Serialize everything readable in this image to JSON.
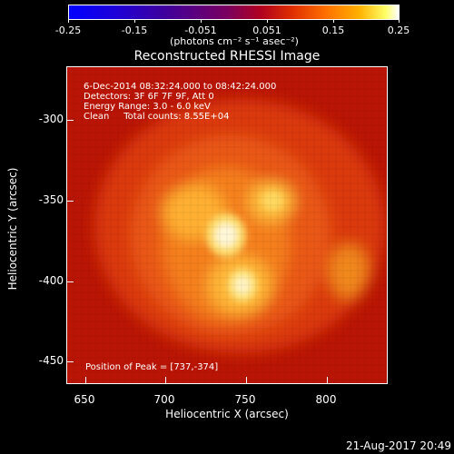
{
  "colorbar": {
    "ticks": [
      "-0.25",
      "-0.15",
      "-0.051",
      "0.051",
      "0.15",
      "0.25"
    ],
    "units": "(photons cm⁻² s⁻¹ asec⁻²)"
  },
  "plot": {
    "title": "Reconstructed RHESSI Image",
    "xlabel": "Heliocentric X (arcsec)",
    "ylabel": "Heliocentric Y (arcsec)",
    "xticks": [
      "650",
      "700",
      "750",
      "800"
    ],
    "yticks": [
      "-300",
      "-350",
      "-400",
      "-450"
    ]
  },
  "info": {
    "time_range": "6-Dec-2014 08:32:24.000 to 08:42:24.000",
    "detectors": "Detectors: 3F 6F 7F 9F, Att 0",
    "energy": "Energy Range: 3.0 - 6.0 keV",
    "clean": "Clean     Total counts: 8.55E+04",
    "peak": "Position of Peak = [737,-374]"
  },
  "timestamp": "21-Aug-2017 20:49",
  "colors": {
    "background": "#000000",
    "frame": "#ffffff"
  }
}
